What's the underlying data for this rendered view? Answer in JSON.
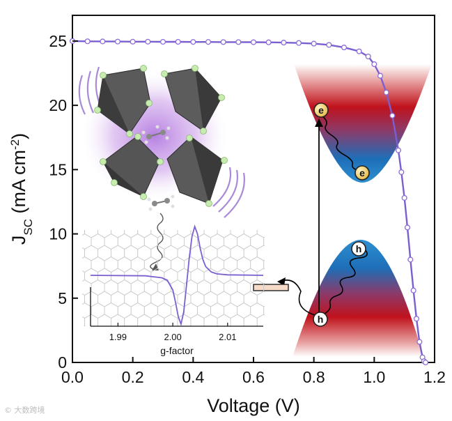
{
  "chart_data": [
    {
      "type": "line",
      "xlabel": "Voltage (V)",
      "ylabel": {
        "main": "J",
        "sub": "SC",
        "units": " (mA cm",
        "sup": "-2",
        "close": ")"
      },
      "xlim": [
        0,
        1.2
      ],
      "ylim": [
        0,
        27
      ],
      "xticks": [
        "0.0",
        "0.2",
        "0.4",
        "0.6",
        "0.8",
        "1.0",
        "1.2"
      ],
      "yticks": [
        "0",
        "5",
        "10",
        "15",
        "20",
        "25"
      ],
      "series": [
        {
          "marker": "open-circle",
          "color": "#8d6bd8",
          "x": [
            0.0,
            0.05,
            0.1,
            0.15,
            0.2,
            0.25,
            0.3,
            0.35,
            0.4,
            0.45,
            0.5,
            0.55,
            0.6,
            0.65,
            0.7,
            0.75,
            0.8,
            0.85,
            0.9,
            0.95,
            0.98,
            1.0,
            1.02,
            1.04,
            1.06,
            1.08,
            1.09,
            1.1,
            1.11,
            1.12,
            1.13,
            1.14,
            1.15,
            1.16,
            1.165,
            1.17
          ],
          "y": [
            25.0,
            24.98,
            24.97,
            24.96,
            24.95,
            24.95,
            24.94,
            24.94,
            24.93,
            24.93,
            24.92,
            24.92,
            24.91,
            24.9,
            24.88,
            24.85,
            24.8,
            24.7,
            24.5,
            24.2,
            23.8,
            23.2,
            22.3,
            21.0,
            19.2,
            16.5,
            14.8,
            12.8,
            10.5,
            8.0,
            5.6,
            3.4,
            1.6,
            0.4,
            0.1,
            0.0
          ]
        }
      ]
    },
    {
      "type": "line",
      "xlabel": "g-factor",
      "xlim": [
        1.985,
        2.0165
      ],
      "xticks": [
        "1.99",
        "2.00",
        "2.01"
      ],
      "series": [
        {
          "color": "#7a5fd0",
          "x": [
            1.985,
            1.995,
            1.998,
            1.999,
            2.0,
            2.0005,
            2.001,
            2.0015,
            2.002,
            2.0025,
            2.003,
            2.0035,
            2.004,
            2.0045,
            2.005,
            2.0055,
            2.006,
            2.007,
            2.008,
            2.01,
            2.0165
          ],
          "y": [
            0,
            -0.01,
            -0.05,
            -0.1,
            -0.3,
            -0.55,
            -0.85,
            -1.0,
            -0.75,
            -0.2,
            0.35,
            0.8,
            1.0,
            0.85,
            0.55,
            0.32,
            0.18,
            0.07,
            0.03,
            0.01,
            0
          ]
        }
      ]
    }
  ],
  "band_diagram": {
    "electron_label": "e",
    "hole_label": "h"
  },
  "watermark": "© 大数跨境"
}
